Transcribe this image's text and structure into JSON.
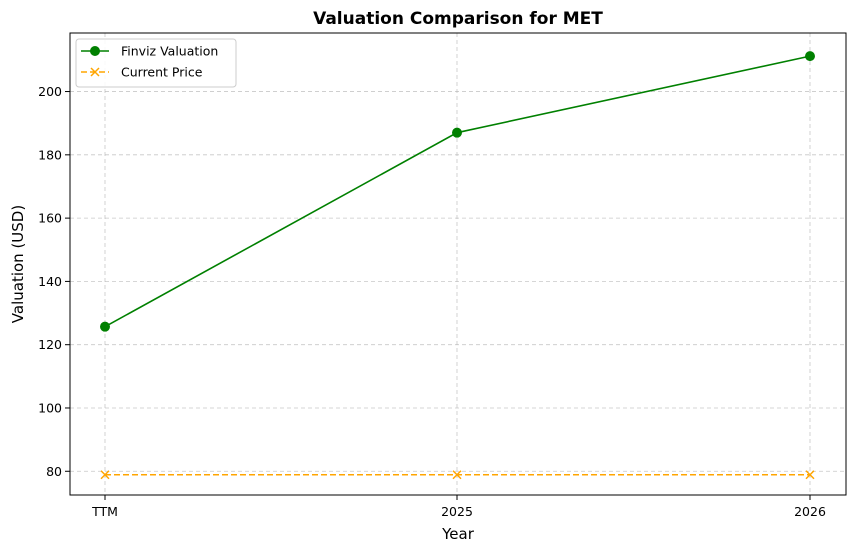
{
  "chart_data": {
    "type": "line",
    "title": "Valuation Comparison for MET",
    "xlabel": "Year",
    "ylabel": "Valuation (USD)",
    "categories": [
      "TTM",
      "2025",
      "2026"
    ],
    "y_ticks": [
      80,
      100,
      120,
      140,
      160,
      180,
      200
    ],
    "ylim": [
      72.5,
      218.5
    ],
    "grid": true,
    "legend_position": "top-left",
    "series": [
      {
        "name": "Finviz Valuation",
        "values": [
          125.7,
          187.0,
          211.2
        ],
        "color": "#008000",
        "marker": "circle",
        "line_style": "solid"
      },
      {
        "name": "Current Price",
        "values": [
          78.9,
          78.9,
          78.9
        ],
        "color": "#FFA500",
        "marker": "x",
        "line_style": "dashed"
      }
    ]
  }
}
